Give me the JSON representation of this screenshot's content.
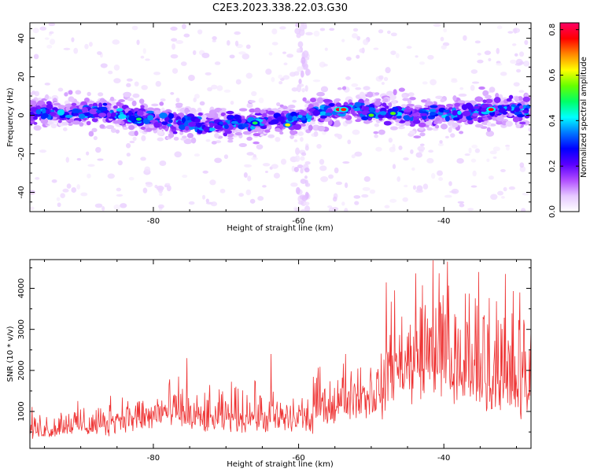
{
  "title": "C2E3.2023.338.22.03.G30",
  "chart_data": [
    {
      "type": "heatmap",
      "xlabel": "Height of straight line (km)",
      "ylabel": "Frequency (Hz)",
      "xlim": [
        -97,
        -28
      ],
      "ylim": [
        -50,
        48
      ],
      "xticks": [
        -80,
        -60,
        -40
      ],
      "yticks": [
        -40,
        -20,
        0,
        20,
        40
      ],
      "band_center_hz": [
        [
          -97,
          2
        ],
        [
          -92,
          1
        ],
        [
          -88,
          2
        ],
        [
          -84,
          0
        ],
        [
          -80,
          -2
        ],
        [
          -76,
          -4
        ],
        [
          -72,
          -5
        ],
        [
          -68,
          -4
        ],
        [
          -64,
          -3
        ],
        [
          -60,
          -1
        ],
        [
          -56,
          2
        ],
        [
          -52,
          3
        ],
        [
          -48,
          1
        ],
        [
          -44,
          0
        ],
        [
          -40,
          1
        ],
        [
          -36,
          2
        ],
        [
          -32,
          3
        ],
        [
          -28,
          3
        ]
      ],
      "band_halfwidth_hz": 6,
      "colorbar": {
        "label": "Normalized spectral amplitude",
        "range": [
          0.0,
          0.83
        ],
        "ticks": [
          0.0,
          0.2,
          0.4,
          0.6,
          0.8
        ],
        "colormap": [
          "#ffffff",
          "#e6c8ff",
          "#b04dff",
          "#5a00ff",
          "#0000ff",
          "#0077ff",
          "#00ffff",
          "#00ff66",
          "#66ff00",
          "#ffff00",
          "#ff8800",
          "#ff0000",
          "#ff0066"
        ]
      }
    },
    {
      "type": "line",
      "xlabel": "Height of straight line (km)",
      "ylabel": "SNR (10 * v/v)",
      "xlim": [
        -97,
        -28
      ],
      "ylim": [
        100,
        4700
      ],
      "xticks": [
        -80,
        -60,
        -40
      ],
      "yticks": [
        1000,
        2000,
        3000,
        4000
      ],
      "color": "#ee3333",
      "segments": [
        {
          "x": [
            -97,
            -93
          ],
          "base": 420,
          "amp": 500
        },
        {
          "x": [
            -93,
            -86
          ],
          "base": 500,
          "amp": 600
        },
        {
          "x": [
            -86,
            -80
          ],
          "base": 650,
          "amp": 700
        },
        {
          "x": [
            -80,
            -75
          ],
          "base": 700,
          "amp": 900
        },
        {
          "x": [
            -75,
            -70
          ],
          "base": 600,
          "amp": 800
        },
        {
          "x": [
            -70,
            -65
          ],
          "base": 650,
          "amp": 900
        },
        {
          "x": [
            -65,
            -58
          ],
          "base": 600,
          "amp": 800
        },
        {
          "x": [
            -58,
            -54
          ],
          "base": 900,
          "amp": 900
        },
        {
          "x": [
            -54,
            -48
          ],
          "base": 1100,
          "amp": 1100
        },
        {
          "x": [
            -48,
            -44
          ],
          "base": 1500,
          "amp": 2200
        },
        {
          "x": [
            -44,
            -40
          ],
          "base": 1700,
          "amp": 2700
        },
        {
          "x": [
            -40,
            -36
          ],
          "base": 1400,
          "amp": 2600
        },
        {
          "x": [
            -36,
            -32
          ],
          "base": 1300,
          "amp": 2700
        },
        {
          "x": [
            -32,
            -28
          ],
          "base": 1000,
          "amp": 2600
        }
      ],
      "peaks": [
        {
          "x": -75.4,
          "y": 2300
        },
        {
          "x": -63.8,
          "y": 2400
        },
        {
          "x": -46.8,
          "y": 3950
        },
        {
          "x": -41.5,
          "y": 4680
        },
        {
          "x": -39.5,
          "y": 4650
        },
        {
          "x": -35.2,
          "y": 4400
        },
        {
          "x": -31.5,
          "y": 4350
        },
        {
          "x": -29.5,
          "y": 3900
        }
      ]
    }
  ]
}
